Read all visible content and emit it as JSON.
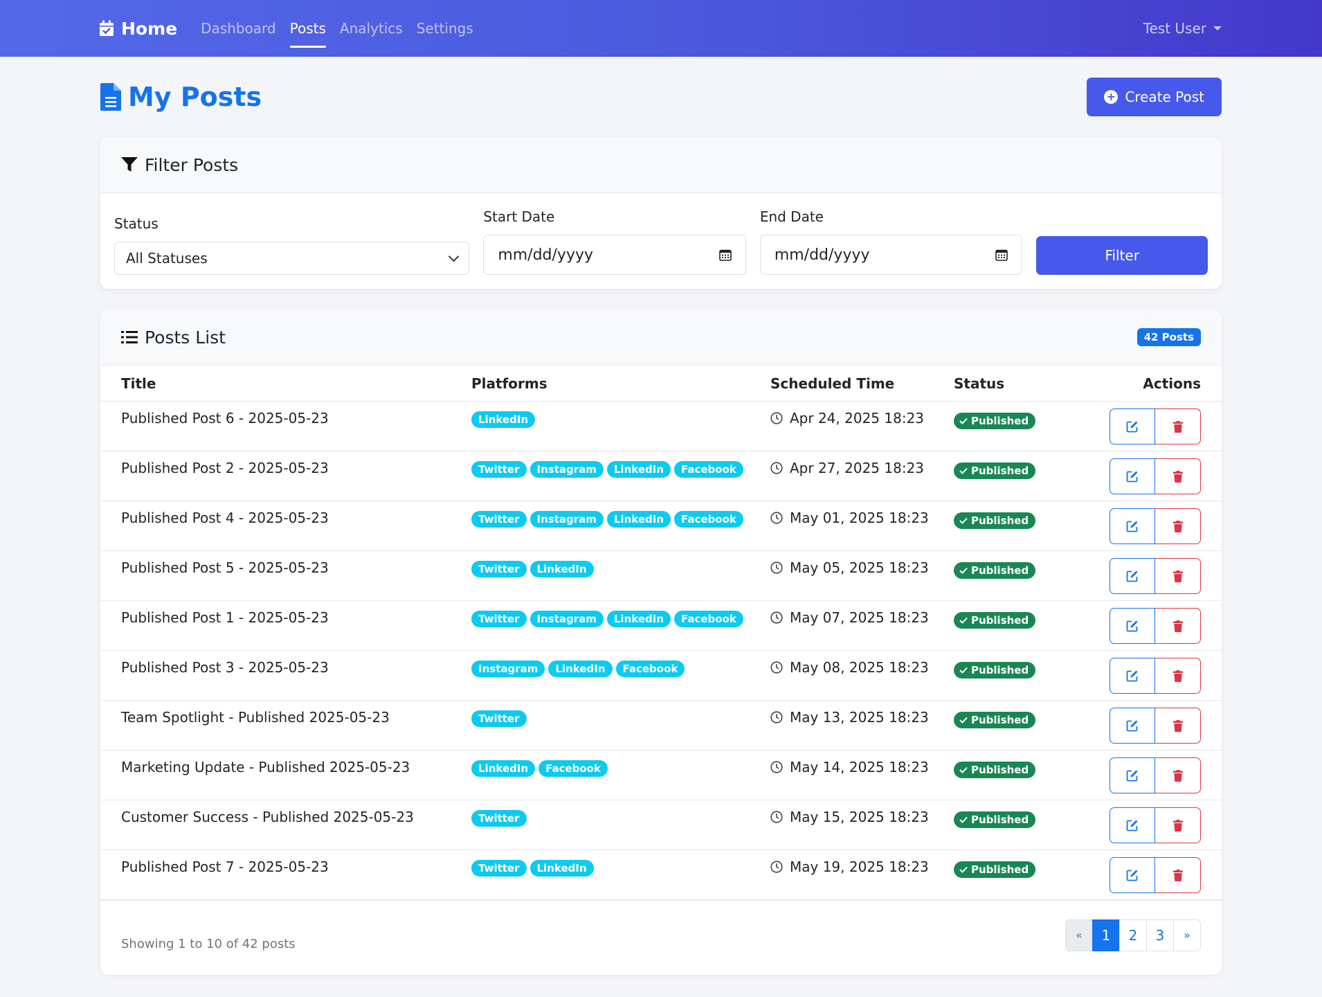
{
  "nav": {
    "brand": "Home",
    "links": [
      "Dashboard",
      "Posts",
      "Analytics",
      "Settings"
    ],
    "active": "Posts",
    "user": "Test User"
  },
  "page": {
    "title": "My Posts",
    "create_label": "Create Post"
  },
  "filter": {
    "header": "Filter Posts",
    "status_label": "Status",
    "status_value": "All Statuses",
    "start_label": "Start Date",
    "start_placeholder": "mm/dd/yyyy",
    "end_label": "End Date",
    "end_placeholder": "mm/dd/yyyy",
    "button": "Filter"
  },
  "posts": {
    "header": "Posts List",
    "count_badge": "42 Posts",
    "columns": [
      "Title",
      "Platforms",
      "Scheduled Time",
      "Status",
      "Actions"
    ],
    "rows": [
      {
        "title": "Published Post 6 - 2025-05-23",
        "platforms": [
          "LinkedIn"
        ],
        "time": "Apr 24, 2025 18:23",
        "status": "Published"
      },
      {
        "title": "Published Post 2 - 2025-05-23",
        "platforms": [
          "Twitter",
          "Instagram",
          "LinkedIn",
          "Facebook"
        ],
        "time": "Apr 27, 2025 18:23",
        "status": "Published"
      },
      {
        "title": "Published Post 4 - 2025-05-23",
        "platforms": [
          "Twitter",
          "Instagram",
          "LinkedIn",
          "Facebook"
        ],
        "time": "May 01, 2025 18:23",
        "status": "Published"
      },
      {
        "title": "Published Post 5 - 2025-05-23",
        "platforms": [
          "Twitter",
          "LinkedIn"
        ],
        "time": "May 05, 2025 18:23",
        "status": "Published"
      },
      {
        "title": "Published Post 1 - 2025-05-23",
        "platforms": [
          "Twitter",
          "Instagram",
          "LinkedIn",
          "Facebook"
        ],
        "time": "May 07, 2025 18:23",
        "status": "Published"
      },
      {
        "title": "Published Post 3 - 2025-05-23",
        "platforms": [
          "Instagram",
          "LinkedIn",
          "Facebook"
        ],
        "time": "May 08, 2025 18:23",
        "status": "Published"
      },
      {
        "title": "Team Spotlight - Published 2025-05-23",
        "platforms": [
          "Twitter"
        ],
        "time": "May 13, 2025 18:23",
        "status": "Published"
      },
      {
        "title": "Marketing Update - Published 2025-05-23",
        "platforms": [
          "LinkedIn",
          "Facebook"
        ],
        "time": "May 14, 2025 18:23",
        "status": "Published"
      },
      {
        "title": "Customer Success - Published 2025-05-23",
        "platforms": [
          "Twitter"
        ],
        "time": "May 15, 2025 18:23",
        "status": "Published"
      },
      {
        "title": "Published Post 7 - 2025-05-23",
        "platforms": [
          "Twitter",
          "LinkedIn"
        ],
        "time": "May 19, 2025 18:23",
        "status": "Published"
      }
    ],
    "showing": "Showing 1 to 10 of 42 posts",
    "pagination": [
      "«",
      "1",
      "2",
      "3",
      "»"
    ],
    "current_page": "1"
  },
  "colors": {
    "primary": "#4759ea",
    "link_blue": "#1573ec",
    "chip": "#0dcaf0",
    "success": "#198754",
    "danger": "#dc3545"
  },
  "icons": {
    "brand": "calendar-check-icon",
    "title": "document-icon",
    "create": "plus-circle-icon",
    "filter": "funnel-icon",
    "list": "list-icon",
    "time": "clock-icon",
    "status": "check-icon",
    "edit": "edit-icon",
    "delete": "trash-icon"
  }
}
